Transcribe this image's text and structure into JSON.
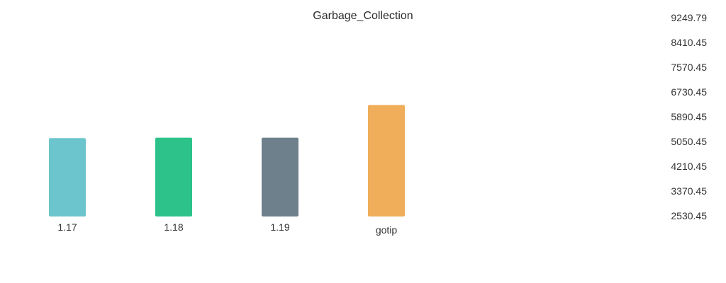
{
  "chart_data": {
    "type": "bar",
    "title": "Garbage_Collection",
    "xlabel": "",
    "ylabel": "",
    "categories": [
      "1.17",
      "1.18",
      "1.19",
      "gotip"
    ],
    "values": [
      5180,
      5195,
      5195,
      6300
    ],
    "colors": [
      "#6cc5cc",
      "#2cc28a",
      "#6e808b",
      "#f0ad5a"
    ],
    "y_ticks": [
      "9249.79",
      "8410.45",
      "7570.45",
      "6730.45",
      "5890.45",
      "5050.45",
      "4210.45",
      "3370.45",
      "2530.45"
    ],
    "ylim": [
      2530.45,
      9249.79
    ],
    "axis_position": "right",
    "grid": false,
    "legend": "none"
  }
}
